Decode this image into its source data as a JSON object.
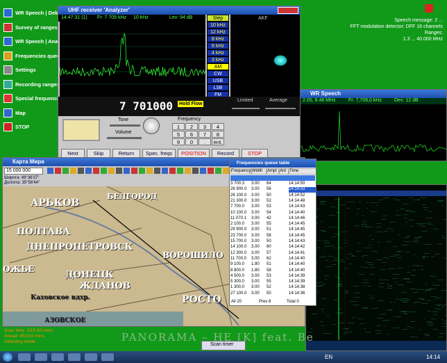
{
  "desktop_icons": [
    "WR Speech | Dekoder",
    "Survey of ranges",
    "WR Speech | Analyzer",
    "Frequencies queue",
    "Settings",
    "Recording ranges",
    "Special frequencies",
    "Map",
    "STOP"
  ],
  "desktop_info": [
    "Speech message: 2 ...",
    "FFT modulation detector: DFF 16 channels",
    "Ranges:",
    "1.3 ... 40.000 MHz"
  ],
  "receiver": {
    "title": "UHF receiver 'Analyzer'",
    "status": [
      "14:47:31 (1)",
      "Fr: 7 709 kHz",
      "10 kHz",
      "Lev: 94 dB"
    ],
    "modes": [
      "Step",
      "10 kHz",
      "12 kHz",
      "8 kHz",
      "6 kHz",
      "4 kHz",
      "3 kHz",
      "AM",
      "CW",
      "USB",
      "LSB",
      "FM"
    ],
    "panel_title": "AKF",
    "frequency": "7 701000",
    "hold": "Hold Flow",
    "limited": "Limited",
    "average": "Average",
    "tone": "Tone",
    "volume": "Volume",
    "frequency_label": "Frequency",
    "keypad": [
      "1",
      "2",
      "3",
      "4",
      "5",
      "6",
      "7",
      "8",
      "9",
      "0",
      ".",
      "ent."
    ],
    "buttons": [
      "Next",
      "Skip",
      "Return",
      "Spec. freqs",
      "POSITION",
      "Record",
      "STOP"
    ]
  },
  "speech": {
    "title": "WR Speech",
    "freq": "2.00, 8.48 MHz",
    "fr": "Fr: 7,709,0 kHz",
    "dev": "Dev: 12 dB"
  },
  "map": {
    "title": "Карта Мира",
    "scale": "15 000 000",
    "coords": [
      "Широта: 48°36'37\"",
      "Долгота: 35°56'44\""
    ],
    "places": [
      "БЕЛГОРОД",
      "АРЬКОВ",
      "ПОЛТАВА",
      "ДНЕПРОПЕТРОВСК",
      "ВОРОШИЛО",
      "ДОНЕЦК",
      "ЖДАНОВ",
      "РОСТО",
      "ОЖЬЕ",
      "Каховское вдхр.",
      "АЗОВСКОЕ"
    ]
  },
  "queue": {
    "title": "Frequencies queue table",
    "columns": [
      "Frequency",
      "Width",
      "Ampl",
      "Ant",
      "Time"
    ],
    "rows": [
      [
        "3 700.3",
        "3.00",
        "64",
        "",
        "14:14:50"
      ],
      [
        "26 900.0",
        "3.00",
        "56",
        "",
        "14:14:53"
      ],
      [
        "26 100.0",
        "3.00",
        "50",
        "",
        "14:14:52"
      ],
      [
        "21 300.0",
        "3.00",
        "52",
        "",
        "14:14:48"
      ],
      [
        "7 700.0",
        "3.00",
        "53",
        "",
        "14:14:43"
      ],
      [
        "10 100.0",
        "3.00",
        "54",
        "",
        "14:14:40"
      ],
      [
        "11 070.1",
        "3.00",
        "42",
        "",
        "14:14:46"
      ],
      [
        "2 100.0",
        "3.00",
        "55",
        "",
        "14:14:45"
      ],
      [
        "29 900.0",
        "3.00",
        "51",
        "",
        "14:14:45"
      ],
      [
        "23 700.0",
        "3.00",
        "58",
        "",
        "14:14:45"
      ],
      [
        "15 700.0",
        "3.00",
        "50",
        "",
        "14:14:43"
      ],
      [
        "14 100.0",
        "3.00",
        "60",
        "",
        "14:14:42"
      ],
      [
        "12 300.0",
        "3.00",
        "57",
        "",
        "14:14:41"
      ],
      [
        "11 700.0",
        "3.00",
        "62",
        "",
        "14:14:40"
      ],
      [
        "9 100.0",
        "1.80",
        "51",
        "",
        "14:14:40"
      ],
      [
        "8 800.0",
        "1.80",
        "58",
        "",
        "14:14:40"
      ],
      [
        "4 500.0",
        "3.00",
        "53",
        "",
        "14:14:39"
      ],
      [
        "5 300.0",
        "3.00",
        "55",
        "",
        "14:14:39"
      ],
      [
        "1 300.0",
        "3.00",
        "52",
        "",
        "14:14:38"
      ],
      [
        "27 100.0",
        "3.00",
        "50",
        "",
        "14:14:36"
      ]
    ],
    "footer": [
      "All 20",
      "Prev 8",
      "Total 0"
    ]
  },
  "status_lines": [
    "Scan time: 1/15 60 mins",
    "Ahead: 45/103 mins",
    "Selecting mode"
  ],
  "marquee": "PANORAMA – HE [K] feat. Be",
  "scan_timer": "Scan timer",
  "taskbar": {
    "lang": "EN",
    "time": "14:14"
  }
}
